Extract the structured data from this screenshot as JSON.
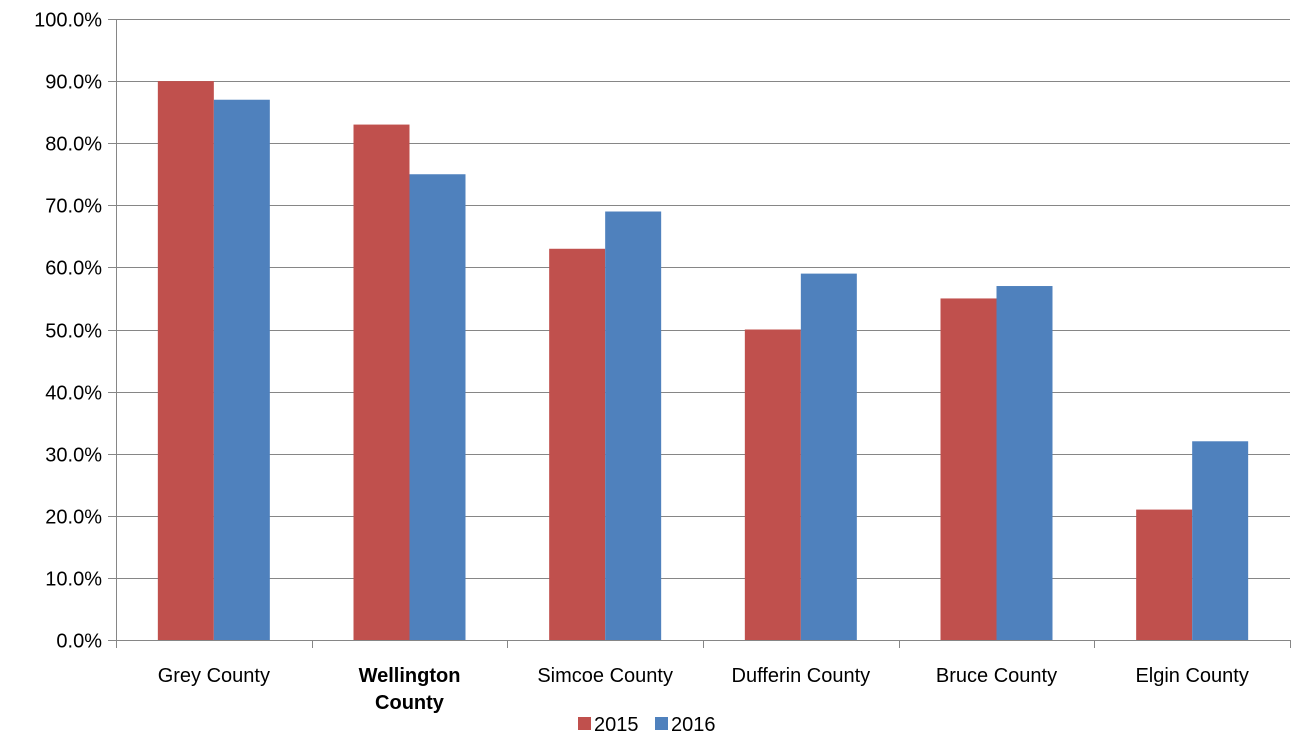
{
  "chart_data": {
    "type": "bar",
    "title": "",
    "xlabel": "",
    "ylabel": "",
    "categories": [
      [
        "Grey County"
      ],
      [
        "Wellington",
        "County"
      ],
      [
        "Simcoe County"
      ],
      [
        "Dufferin County"
      ],
      [
        "Bruce County"
      ],
      [
        "Elgin County"
      ]
    ],
    "bold_category_index": 1,
    "series": [
      {
        "name": "2015",
        "color": "#C0504D",
        "values": [
          90,
          83,
          63,
          50,
          55,
          21
        ]
      },
      {
        "name": "2016",
        "color": "#4F81BD",
        "values": [
          87,
          75,
          69,
          59,
          57,
          32
        ]
      }
    ],
    "ylim": [
      0,
      100
    ],
    "ytick_step": 10,
    "ytick_labels": [
      "0.0%",
      "10.0%",
      "20.0%",
      "30.0%",
      "40.0%",
      "50.0%",
      "60.0%",
      "70.0%",
      "80.0%",
      "90.0%",
      "100.0%"
    ],
    "grid": true,
    "legend_position": "bottom"
  }
}
